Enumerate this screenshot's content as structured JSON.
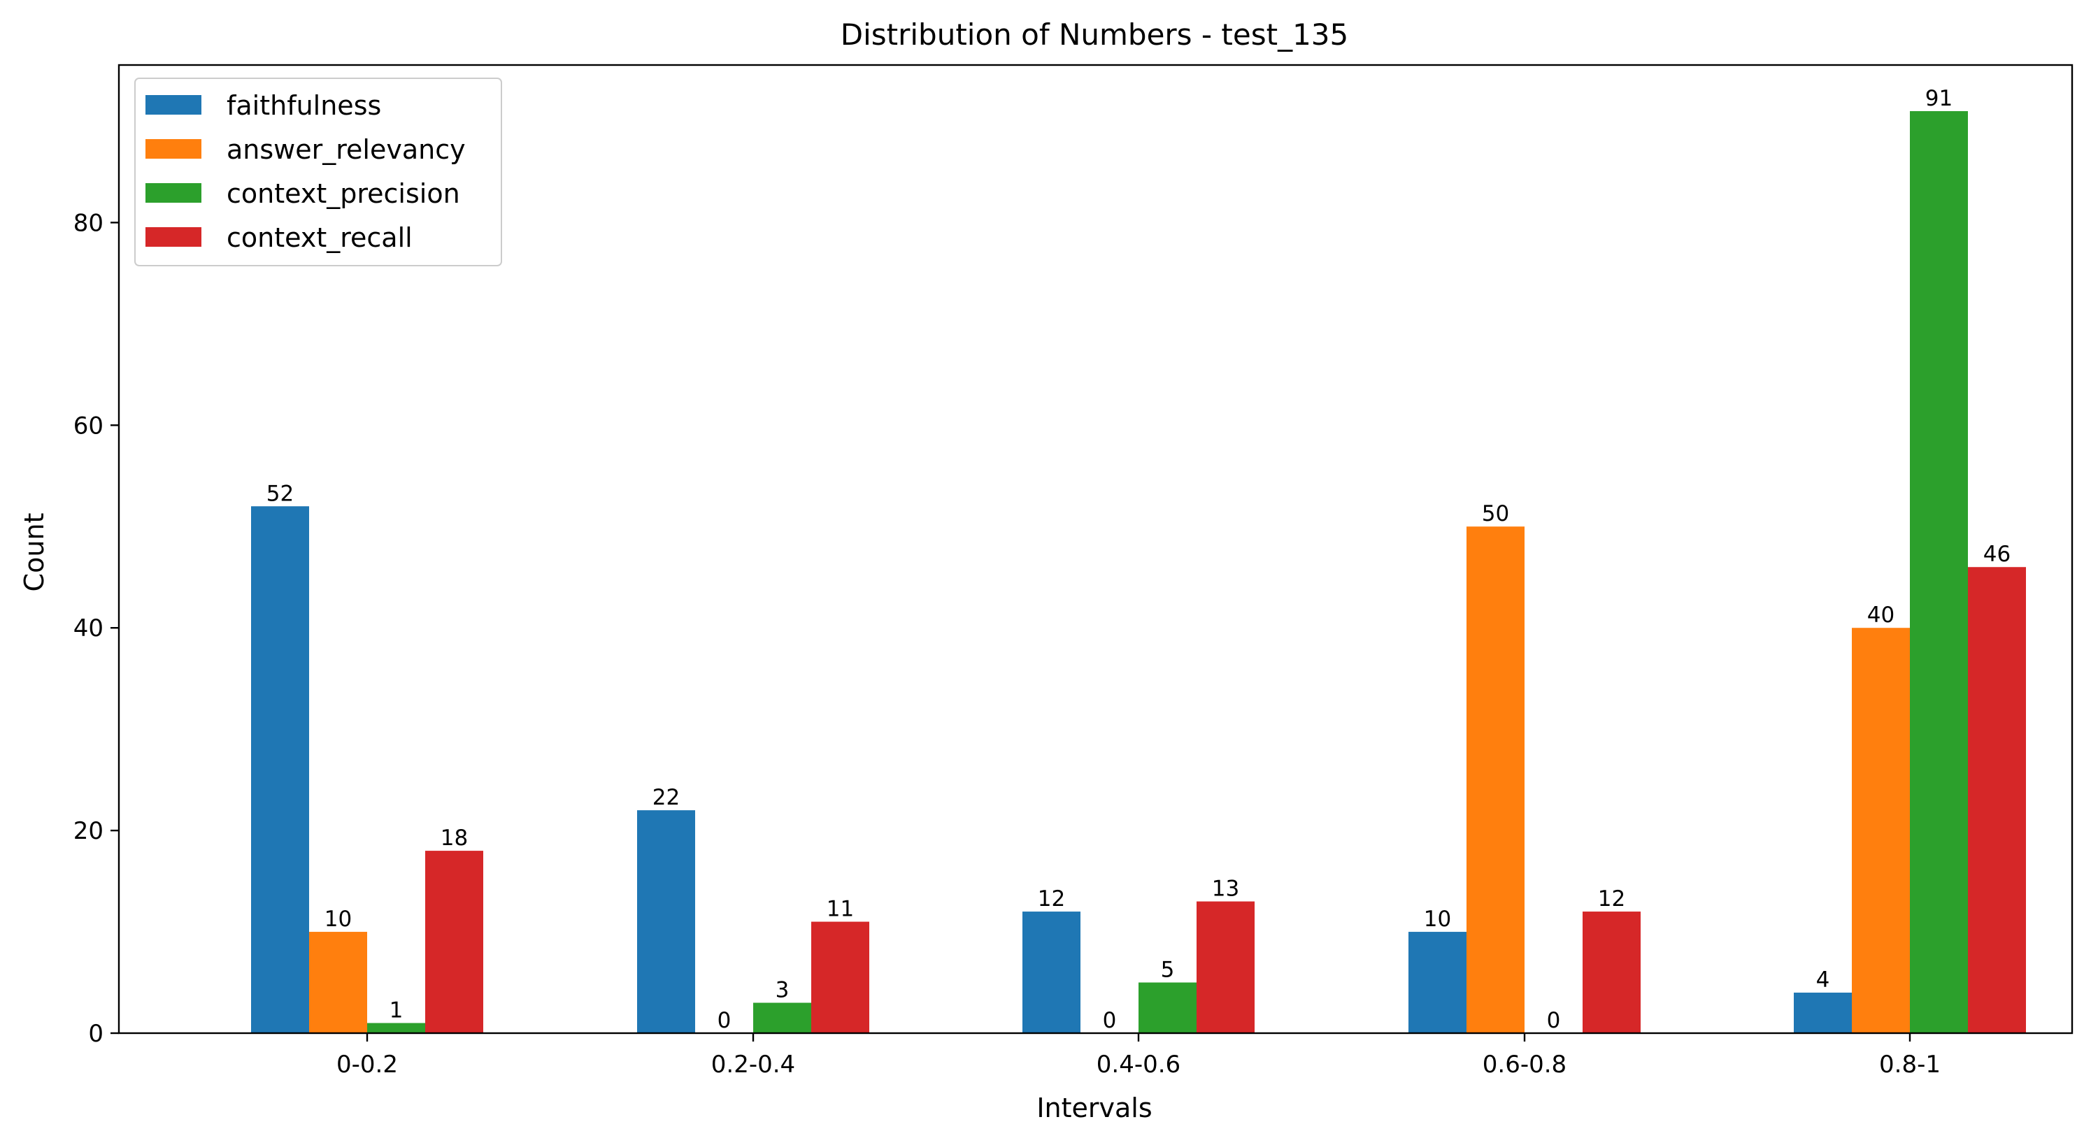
{
  "chart_data": {
    "type": "bar",
    "title": "Distribution of Numbers - test_135",
    "xlabel": "Intervals",
    "ylabel": "Count",
    "categories": [
      "0-0.2",
      "0.2-0.4",
      "0.4-0.6",
      "0.6-0.8",
      "0.8-1"
    ],
    "ylim": [
      0,
      95.55
    ],
    "yticks": [
      0,
      20,
      40,
      60,
      80
    ],
    "grid": false,
    "legend_position": "top-left",
    "series": [
      {
        "name": "faithfulness",
        "color": "#1f77b4",
        "values": [
          52,
          22,
          12,
          10,
          4
        ]
      },
      {
        "name": "answer_relevancy",
        "color": "#ff7f0e",
        "values": [
          10,
          0,
          0,
          50,
          40
        ]
      },
      {
        "name": "context_precision",
        "color": "#2ca02c",
        "values": [
          1,
          3,
          5,
          0,
          91
        ]
      },
      {
        "name": "context_recall",
        "color": "#d62728",
        "values": [
          18,
          11,
          13,
          12,
          46
        ]
      }
    ]
  }
}
